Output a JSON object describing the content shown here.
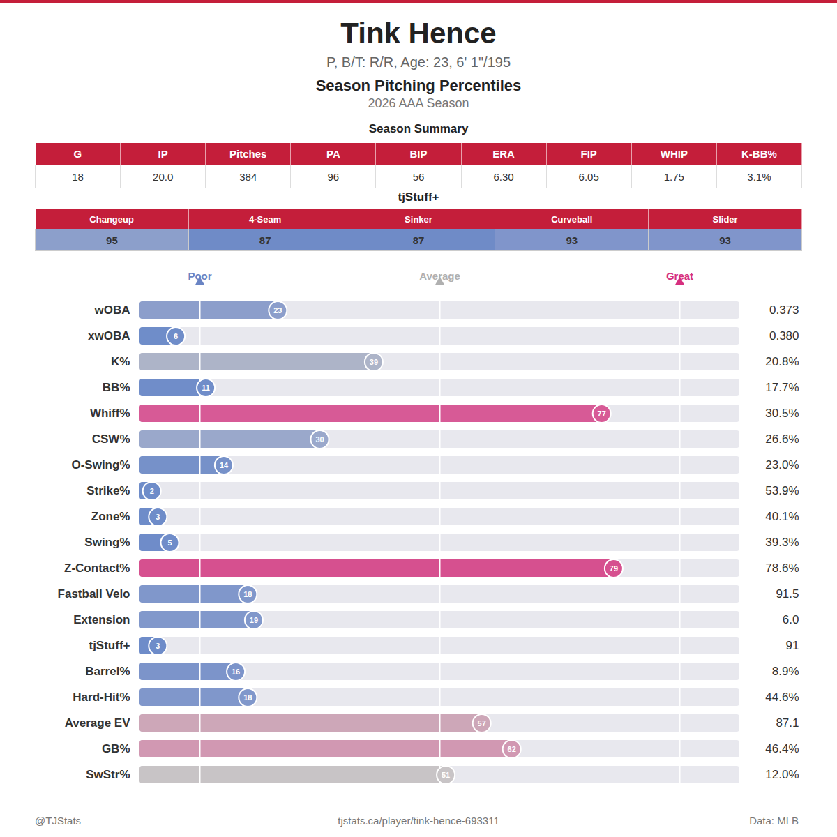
{
  "header": {
    "title": "Tink Hence",
    "subtitle": "P, B/T: R/R, Age: 23, 6' 1\"/195",
    "heading": "Season Pitching Percentiles",
    "season": "2026 AAA Season"
  },
  "summary": {
    "title": "Season Summary",
    "columns": [
      "G",
      "IP",
      "Pitches",
      "PA",
      "BIP",
      "ERA",
      "FIP",
      "WHIP",
      "K-BB%"
    ],
    "values": [
      "18",
      "20.0",
      "384",
      "96",
      "56",
      "6.30",
      "6.05",
      "1.75",
      "3.1%"
    ]
  },
  "stuff": {
    "title": "tjStuff+",
    "columns": [
      "Changeup",
      "4-Seam",
      "Sinker",
      "Curveball",
      "Slider"
    ],
    "values": [
      95,
      87,
      87,
      93,
      93
    ],
    "colors": [
      "#8c9fcb",
      "#6f8bc7",
      "#6f8bc7",
      "#8095cb",
      "#8095cb"
    ]
  },
  "chart_data": {
    "type": "bar",
    "orientation": "horizontal",
    "categories": [
      "wOBA",
      "xwOBA",
      "K%",
      "BB%",
      "Whiff%",
      "CSW%",
      "O-Swing%",
      "Strike%",
      "Zone%",
      "Swing%",
      "Z-Contact%",
      "Fastball Velo",
      "Extension",
      "tjStuff+",
      "Barrel%",
      "Hard-Hit%",
      "Average EV",
      "GB%",
      "SwStr%"
    ],
    "values": [
      23,
      6,
      39,
      11,
      77,
      30,
      14,
      2,
      3,
      5,
      79,
      18,
      19,
      3,
      16,
      18,
      57,
      62,
      51
    ],
    "colors": [
      "#8c9ecb",
      "#6f8dc9",
      "#adb4c8",
      "#708dc9",
      "#d75a96",
      "#9aa8cb",
      "#7691c9",
      "#6e8cc9",
      "#6e8cc9",
      "#6f8cc9",
      "#d6508f",
      "#8097cb",
      "#8198cb",
      "#6e8cc9",
      "#7c94ca",
      "#8097cb",
      "#cda7b8",
      "#d198b2",
      "#c8c4c6"
    ],
    "stat_values": [
      "0.373",
      "0.380",
      "20.8%",
      "17.7%",
      "30.5%",
      "26.6%",
      "23.0%",
      "53.9%",
      "40.1%",
      "39.3%",
      "78.6%",
      "91.5",
      "6.0",
      "91",
      "8.9%",
      "44.6%",
      "87.1",
      "46.4%",
      "12.0%"
    ],
    "xlim": [
      0,
      100
    ],
    "xticks": [
      {
        "value": 10,
        "label": "Poor"
      },
      {
        "value": 50,
        "label": "Average"
      },
      {
        "value": 90,
        "label": "Great"
      }
    ],
    "grid": true,
    "data_labels": true
  },
  "footer": {
    "left": "@TJStats",
    "center": "tjstats.ca/player/tink-hence-693311",
    "right": "Data: MLB"
  }
}
